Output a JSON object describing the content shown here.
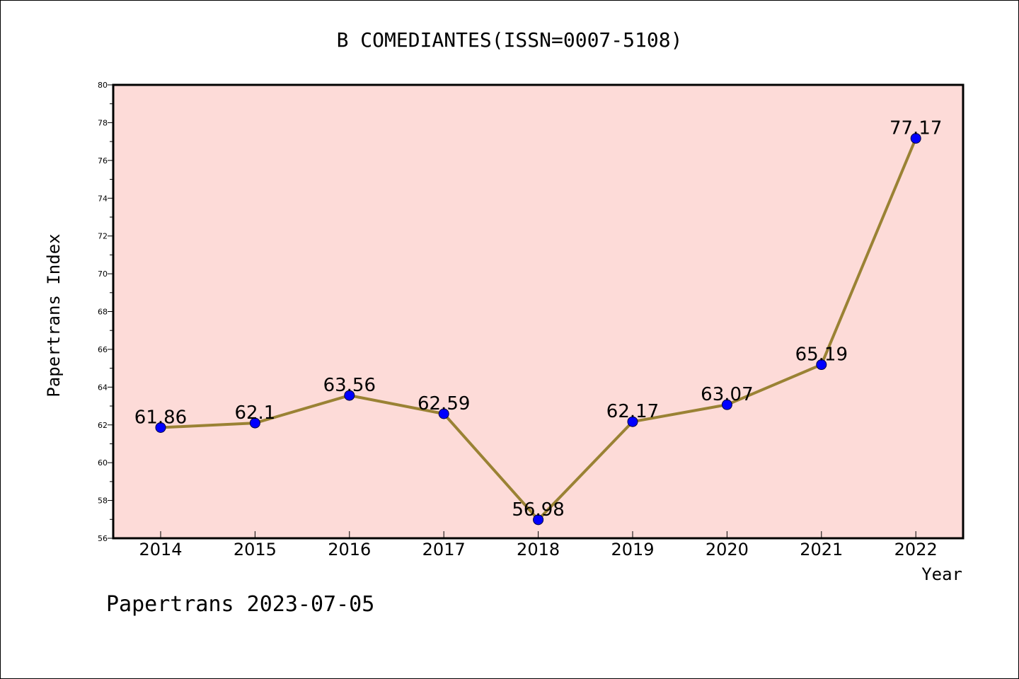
{
  "chart_data": {
    "type": "line",
    "title": "B COMEDIANTES(ISSN=0007-5108)",
    "xlabel": "Year",
    "ylabel": "Papertrans Index",
    "categories": [
      "2014",
      "2015",
      "2016",
      "2017",
      "2018",
      "2019",
      "2020",
      "2021",
      "2022"
    ],
    "series": [
      {
        "values": [
          61.86,
          62.1,
          63.56,
          62.59,
          56.98,
          62.17,
          63.07,
          65.19,
          77.17
        ],
        "labels": [
          "61.86",
          "62.1",
          "63.56",
          "62.59",
          "56.98",
          "62.17",
          "63.07",
          "65.19",
          "77.17"
        ]
      }
    ],
    "ylim": [
      56,
      80
    ],
    "yticks": [
      "56",
      "58",
      "60",
      "62",
      "64",
      "66",
      "68",
      "70",
      "72",
      "74",
      "76",
      "78",
      "80"
    ],
    "grid": false,
    "colors": {
      "plot_background": "#fddbd8",
      "line": "#9a8234",
      "marker": "#0000ff",
      "frame": "#000000"
    }
  },
  "footer": "Papertrans 2023-07-05"
}
